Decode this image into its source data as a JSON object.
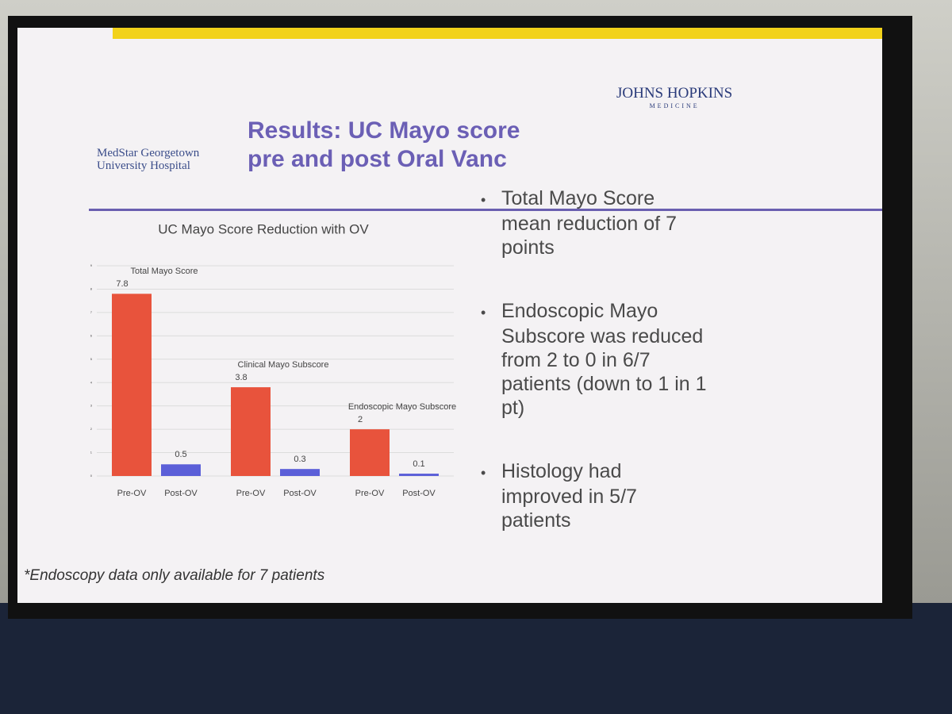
{
  "slide": {
    "logo_left": [
      "MedStar Georgetown",
      "University Hospital"
    ],
    "logo_right": [
      "JOHNS HOPKINS",
      "MEDICINE"
    ],
    "title": [
      "Results: UC Mayo score",
      "pre and post Oral Vanc"
    ],
    "bullets": [
      "Total Mayo Score mean reduction of 7 points",
      "Endoscopic Mayo Subscore was reduced from 2 to 0 in 6/7 patients (down to 1 in 1 pt)",
      "Histology had improved in 5/7 patients"
    ],
    "footnote": "*Endoscopy data only available for 7 patients"
  },
  "chart_data": {
    "type": "bar",
    "title": "UC Mayo Score Reduction with OV",
    "categories": [
      "Total Mayo Score",
      "Clinical Mayo Subscore",
      "Endoscopic Mayo Subscore"
    ],
    "series": [
      {
        "name": "Pre-OV",
        "color": "#e8533c",
        "values": [
          7.8,
          3.8,
          2
        ]
      },
      {
        "name": "Post-OV",
        "color": "#5b5fd8",
        "values": [
          0.5,
          0.3,
          0.1
        ]
      }
    ],
    "ylim": [
      0,
      9
    ],
    "yticks": [
      0,
      1,
      2,
      3,
      4,
      5,
      6,
      7,
      8,
      9
    ],
    "grid": true
  }
}
